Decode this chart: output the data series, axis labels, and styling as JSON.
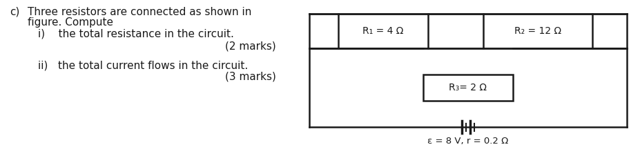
{
  "text_c": "c)",
  "line1": "Three resistors are connected as shown in",
  "line2": "figure. Compute",
  "line3_i": "i)    the total resistance in the circuit.",
  "marks1": "(2 marks)",
  "line4_ii": "ii)   the total current flows in the circuit.",
  "marks2": "(3 marks)",
  "text_R1": "R₁ = 4 Ω",
  "text_R2": "R₂ = 12 Ω",
  "text_R3": "R₃= 2 Ω",
  "text_emf": "ε = 8 V, r = 0.2 Ω",
  "bg_color": "#ffffff",
  "line_color": "#1a1a1a",
  "font_color": "#1a1a1a",
  "font_size": 11,
  "circuit_font_size": 10
}
